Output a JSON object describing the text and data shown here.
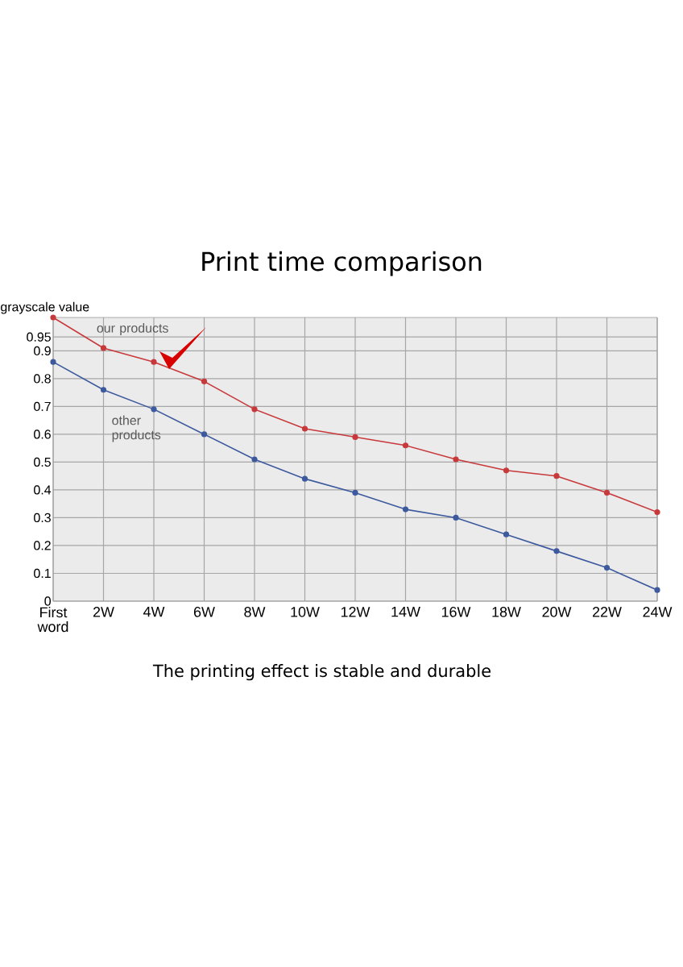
{
  "chart_data": {
    "type": "line",
    "title": "Print time comparison",
    "ylabel": "grayscale value",
    "categories": [
      "First word",
      "2W",
      "4W",
      "6W",
      "8W",
      "10W",
      "12W",
      "14W",
      "16W",
      "18W",
      "20W",
      "22W",
      "24W"
    ],
    "series": [
      {
        "name": "our products",
        "color": "#c8393b",
        "values": [
          1.02,
          0.91,
          0.86,
          0.79,
          0.69,
          0.62,
          0.59,
          0.56,
          0.51,
          0.47,
          0.45,
          0.39,
          0.32
        ]
      },
      {
        "name": "other products",
        "color": "#3d5a9e",
        "values": [
          0.86,
          0.76,
          0.69,
          0.6,
          0.51,
          0.44,
          0.39,
          0.33,
          0.3,
          0.24,
          0.18,
          0.12,
          0.04
        ]
      }
    ],
    "ylim": [
      0,
      1.02
    ],
    "yticks": [
      0,
      0.1,
      0.2,
      0.3,
      0.4,
      0.5,
      0.6,
      0.7,
      0.8,
      0.9,
      0.95
    ],
    "grid": true,
    "marker": "circle",
    "line_style": "solid",
    "annotations": [
      "The printing effect is stable and durable"
    ]
  }
}
